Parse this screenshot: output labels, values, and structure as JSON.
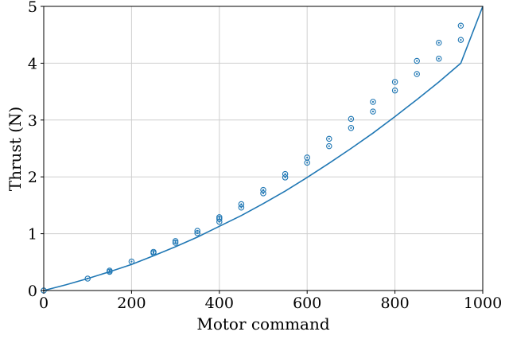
{
  "chart_data": {
    "type": "scatter",
    "title": "",
    "xlabel": "Motor command",
    "ylabel": "Thrust (N)",
    "xlim": [
      0,
      1000
    ],
    "ylim": [
      0,
      5
    ],
    "xticks": [
      "0",
      "200",
      "400",
      "600",
      "800",
      "1000"
    ],
    "yticks": [
      "0",
      "1",
      "2",
      "3",
      "4",
      "5"
    ],
    "grid": true,
    "color": "#1f77b4",
    "series": [
      {
        "kind": "scatter",
        "x": [
          0,
          100,
          150,
          150,
          200,
          250,
          250,
          300,
          300,
          350,
          350,
          400,
          400,
          400,
          450,
          450,
          500,
          500,
          550,
          550,
          600,
          600,
          650,
          650,
          700,
          700,
          750,
          750,
          800,
          800,
          850,
          850,
          900,
          900,
          950,
          950
        ],
        "y": [
          0.0,
          0.21,
          0.33,
          0.35,
          0.51,
          0.66,
          0.68,
          0.84,
          0.87,
          1.01,
          1.05,
          1.21,
          1.26,
          1.29,
          1.46,
          1.52,
          1.71,
          1.77,
          1.99,
          2.05,
          2.25,
          2.34,
          2.54,
          2.67,
          2.86,
          3.02,
          3.15,
          3.32,
          3.52,
          3.67,
          3.81,
          4.04,
          4.08,
          4.36,
          4.41,
          4.66
        ]
      },
      {
        "kind": "line",
        "x": [
          0,
          50,
          100,
          150,
          200,
          250,
          300,
          350,
          400,
          450,
          500,
          550,
          600,
          650,
          700,
          750,
          800,
          850,
          900,
          950,
          1000
        ],
        "y": [
          0.0,
          0.1,
          0.21,
          0.33,
          0.46,
          0.61,
          0.77,
          0.94,
          1.13,
          1.32,
          1.53,
          1.75,
          1.99,
          2.24,
          2.5,
          2.77,
          3.06,
          3.36,
          3.67,
          4.0,
          5.0
        ]
      }
    ]
  }
}
